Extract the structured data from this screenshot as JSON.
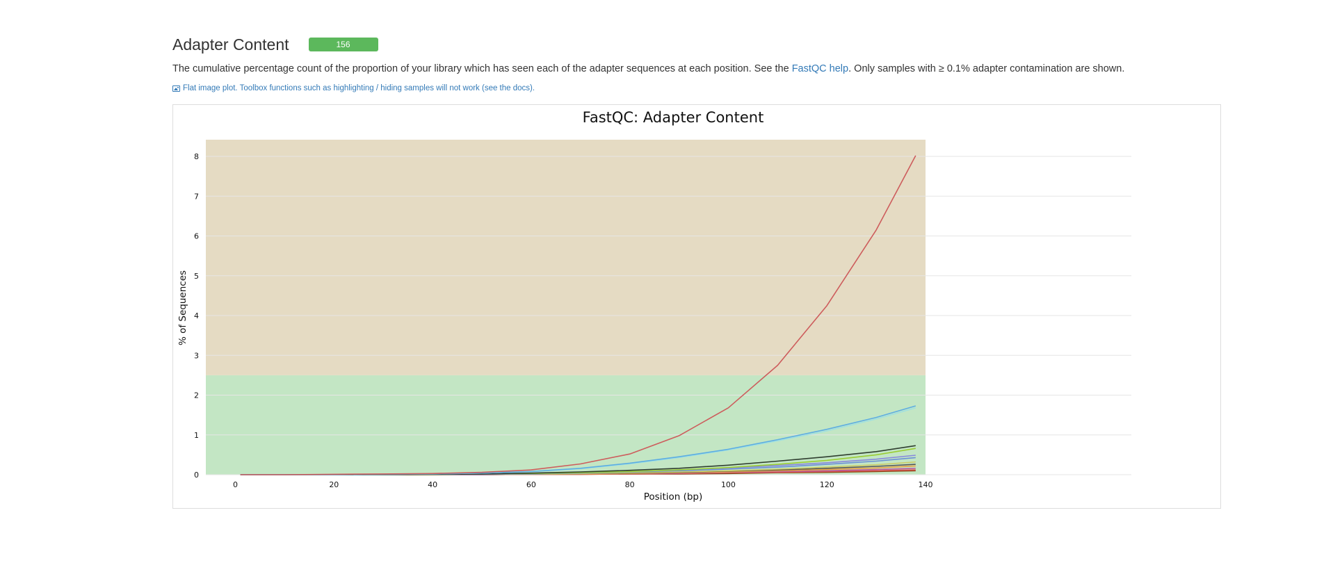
{
  "section": {
    "title": "Adapter Content",
    "badge": "156",
    "description_pre": "The cumulative percentage count of the proportion of your library which has seen each of the adapter sequences at each position. See the ",
    "description_link": "FastQC help",
    "description_post": ". Only samples with ≥ 0.1% adapter contamination are shown.",
    "flat_note": "Flat image plot. Toolbox functions such as highlighting / hiding samples will not work (see the docs)."
  },
  "colors": {
    "badge": "#5cb85c",
    "link": "#337ab7",
    "warn_band": "#e5dbc3",
    "pass_band": "#c3e6c4"
  },
  "icons": {
    "flat_note_icon": "image-icon"
  },
  "chart_data": {
    "type": "line",
    "title": "FastQC: Adapter Content",
    "xlabel": "Position (bp)",
    "ylabel": "% of Sequences",
    "xlim": [
      -6,
      140
    ],
    "ylim": [
      0,
      8.42
    ],
    "xticks": [
      0,
      20,
      40,
      60,
      80,
      100,
      120,
      140
    ],
    "yticks": [
      0,
      1,
      2,
      3,
      4,
      5,
      6,
      7,
      8
    ],
    "grid": true,
    "legend": "none",
    "bands": [
      {
        "from": 0,
        "to": 2.5,
        "color": "#c3e6c4"
      },
      {
        "from": 2.5,
        "to": 8.42,
        "color": "#e5dbc3"
      }
    ],
    "x": [
      1,
      10,
      20,
      30,
      40,
      50,
      60,
      70,
      80,
      90,
      100,
      110,
      120,
      130,
      138
    ],
    "series": [
      {
        "color": "#cd5c5c",
        "values": [
          0.0,
          0.0,
          0.01,
          0.02,
          0.03,
          0.06,
          0.12,
          0.27,
          0.52,
          0.98,
          1.68,
          2.75,
          4.25,
          6.15,
          8.02
        ]
      },
      {
        "color": "#5dade2",
        "values": [
          0.0,
          0.0,
          0.0,
          0.01,
          0.02,
          0.04,
          0.08,
          0.16,
          0.29,
          0.45,
          0.64,
          0.88,
          1.14,
          1.44,
          1.73
        ]
      },
      {
        "color": "#a0e0e0",
        "values": [
          0.0,
          0.0,
          0.0,
          0.01,
          0.02,
          0.04,
          0.08,
          0.15,
          0.27,
          0.43,
          0.62,
          0.85,
          1.1,
          1.4,
          1.68
        ]
      },
      {
        "color": "#2f3e2f",
        "values": [
          0.0,
          0.0,
          0.0,
          0.0,
          0.01,
          0.02,
          0.04,
          0.07,
          0.11,
          0.16,
          0.24,
          0.34,
          0.45,
          0.58,
          0.73
        ]
      },
      {
        "color": "#9acd32",
        "values": [
          0.0,
          0.0,
          0.0,
          0.0,
          0.01,
          0.02,
          0.03,
          0.05,
          0.08,
          0.12,
          0.18,
          0.26,
          0.36,
          0.5,
          0.66
        ]
      },
      {
        "color": "#8888dd",
        "values": [
          0.0,
          0.0,
          0.0,
          0.0,
          0.01,
          0.01,
          0.03,
          0.05,
          0.08,
          0.12,
          0.17,
          0.23,
          0.3,
          0.39,
          0.49
        ]
      },
      {
        "color": "#6a8fd8",
        "values": [
          0.0,
          0.0,
          0.0,
          0.0,
          0.01,
          0.01,
          0.02,
          0.04,
          0.07,
          0.1,
          0.14,
          0.19,
          0.26,
          0.34,
          0.43
        ]
      },
      {
        "color": "#cccc66",
        "values": [
          0.0,
          0.0,
          0.0,
          0.0,
          0.0,
          0.01,
          0.02,
          0.03,
          0.05,
          0.07,
          0.1,
          0.14,
          0.19,
          0.25,
          0.32
        ]
      },
      {
        "color": "#555555",
        "values": [
          0.0,
          0.0,
          0.0,
          0.0,
          0.0,
          0.01,
          0.02,
          0.03,
          0.04,
          0.06,
          0.09,
          0.12,
          0.16,
          0.21,
          0.26
        ]
      },
      {
        "color": "#e8a040",
        "values": [
          0.0,
          0.0,
          0.0,
          0.0,
          0.0,
          0.01,
          0.01,
          0.02,
          0.03,
          0.05,
          0.07,
          0.1,
          0.13,
          0.17,
          0.22
        ]
      },
      {
        "color": "#b85c9e",
        "values": [
          0.0,
          0.0,
          0.0,
          0.0,
          0.0,
          0.0,
          0.01,
          0.02,
          0.03,
          0.04,
          0.06,
          0.08,
          0.1,
          0.13,
          0.16
        ]
      },
      {
        "color": "#d9534f",
        "values": [
          0.0,
          0.0,
          0.0,
          0.0,
          0.0,
          0.0,
          0.01,
          0.01,
          0.02,
          0.03,
          0.05,
          0.06,
          0.08,
          0.1,
          0.12
        ]
      },
      {
        "color": "#8b4513",
        "values": [
          0.0,
          0.0,
          0.0,
          0.0,
          0.0,
          0.0,
          0.01,
          0.01,
          0.02,
          0.02,
          0.03,
          0.05,
          0.06,
          0.08,
          0.1
        ]
      }
    ]
  }
}
